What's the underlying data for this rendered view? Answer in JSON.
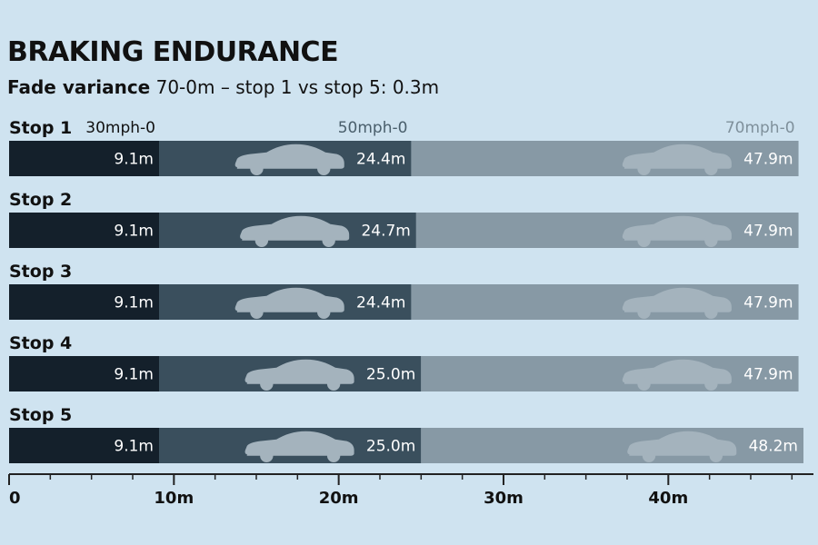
{
  "chart_data": {
    "type": "bar",
    "title": "BRAKING ENDURANCE",
    "subtitle_lead": "Fade variance",
    "subtitle_rest": "70-0m – stop 1 vs stop 5: 0.3m",
    "categories": [
      "Stop 1",
      "Stop 2",
      "Stop 3",
      "Stop 4",
      "Stop 5"
    ],
    "series": [
      {
        "name": "30mph-0",
        "values": [
          9.1,
          9.1,
          9.1,
          9.1,
          9.1
        ],
        "labels": [
          "9.1m",
          "9.1m",
          "9.1m",
          "9.1m",
          "9.1m"
        ]
      },
      {
        "name": "50mph-0",
        "values": [
          24.4,
          24.7,
          24.4,
          25.0,
          25.0
        ],
        "labels": [
          "24.4m",
          "24.7m",
          "24.4m",
          "25.0m",
          "25.0m"
        ]
      },
      {
        "name": "70mph-0",
        "values": [
          47.9,
          47.9,
          47.9,
          47.9,
          48.2
        ],
        "labels": [
          "47.9m",
          "47.9m",
          "47.9m",
          "47.9m",
          "48.2m"
        ]
      }
    ],
    "xlim": [
      0,
      48.2
    ],
    "x_ticks": [
      0,
      10,
      20,
      30,
      40
    ],
    "x_tick_labels": [
      "0",
      "10m",
      "20m",
      "30m",
      "40m"
    ],
    "colors": {
      "background": "#cfe3f0",
      "seg30": "#14202b",
      "seg50": "#3a4f5d",
      "seg70": "#8799a5",
      "car": "#a4b3bd",
      "label50": "#4a5f6c",
      "label70": "#7f909b",
      "axis": "#222222"
    }
  }
}
